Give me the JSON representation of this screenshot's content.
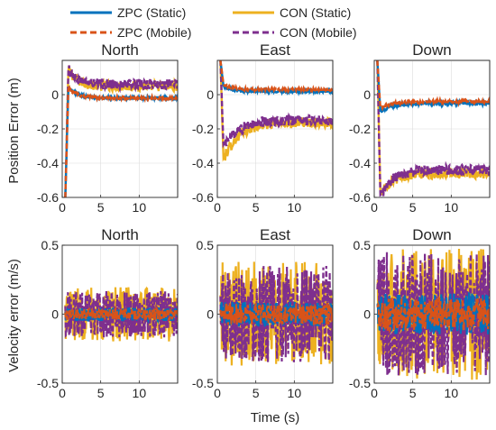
{
  "chart_data": {
    "type": "line",
    "xlabel": "Time (s)",
    "legend": {
      "placement": "top",
      "entries": [
        {
          "name": "ZPC (Static)",
          "color": "#0072BD",
          "dash": "solid"
        },
        {
          "name": "CON (Static)",
          "color": "#EDB120",
          "dash": "solid"
        },
        {
          "name": "ZPC (Mobile)",
          "color": "#D95319",
          "dash": "dashed"
        },
        {
          "name": "CON (Mobile)",
          "color": "#7E2F8E",
          "dash": "dashed"
        }
      ]
    },
    "rows": [
      {
        "ylabel": "Position Error (m)"
      },
      {
        "ylabel": "Velocity error (m/s)"
      }
    ],
    "panels": [
      {
        "title": "North",
        "row": 0,
        "col": 0,
        "xlim": [
          0,
          15
        ],
        "ylim": [
          -0.6,
          0.2
        ],
        "xticks": [
          0,
          5,
          10
        ],
        "yticks": [
          0,
          -0.2,
          -0.4,
          -0.6
        ],
        "xticklabels": [
          "0",
          "5",
          "10"
        ],
        "yticklabels": [
          "0",
          "-0.2",
          "-0.4",
          "-0.6"
        ],
        "grid": true,
        "series": [
          {
            "name": "CON (Static)",
            "kind": "decay",
            "start": -0.6,
            "peak": 0.15,
            "final": 0.05,
            "tau": 1.2,
            "noise": 0.03
          },
          {
            "name": "CON (Mobile)",
            "kind": "decay",
            "start": -0.6,
            "peak": 0.15,
            "final": 0.06,
            "tau": 1.2,
            "noise": 0.03
          },
          {
            "name": "ZPC (Static)",
            "kind": "decay",
            "start": -0.6,
            "peak": 0.04,
            "final": -0.02,
            "tau": 1.2,
            "noise": 0.008
          },
          {
            "name": "ZPC (Mobile)",
            "kind": "decay",
            "start": -0.6,
            "peak": 0.04,
            "final": -0.02,
            "tau": 1.2,
            "noise": 0.008
          }
        ]
      },
      {
        "title": "East",
        "row": 0,
        "col": 1,
        "xlim": [
          0,
          15
        ],
        "ylim": [
          -0.6,
          0.2
        ],
        "xticks": [
          0,
          5,
          10
        ],
        "yticks": [
          0,
          -0.2,
          -0.4,
          -0.6
        ],
        "xticklabels": [
          "0",
          "5",
          "10"
        ],
        "yticklabels": [
          "0",
          "-0.2",
          "-0.4",
          "-0.6"
        ],
        "grid": true,
        "series": [
          {
            "name": "CON (Static)",
            "kind": "decay",
            "start": 0.2,
            "peak": -0.38,
            "final": -0.16,
            "tau": 2.0,
            "noise": 0.03
          },
          {
            "name": "CON (Mobile)",
            "kind": "decay",
            "start": 0.2,
            "peak": -0.3,
            "final": -0.15,
            "tau": 2.0,
            "noise": 0.03
          },
          {
            "name": "ZPC (Static)",
            "kind": "decay",
            "start": 0.2,
            "peak": 0.05,
            "final": 0.02,
            "tau": 1.0,
            "noise": 0.008
          },
          {
            "name": "ZPC (Mobile)",
            "kind": "decay",
            "start": 0.2,
            "peak": 0.06,
            "final": 0.03,
            "tau": 1.0,
            "noise": 0.008
          }
        ]
      },
      {
        "title": "Down",
        "row": 0,
        "col": 2,
        "xlim": [
          0,
          15
        ],
        "ylim": [
          -0.6,
          0.2
        ],
        "xticks": [
          0,
          5,
          10
        ],
        "yticks": [
          0,
          -0.2,
          -0.4,
          -0.6
        ],
        "xticklabels": [
          "0",
          "5",
          "10"
        ],
        "yticklabels": [
          "0",
          "-0.2",
          "-0.4",
          "-0.6"
        ],
        "grid": true,
        "series": [
          {
            "name": "CON (Static)",
            "kind": "decay",
            "start": 0.2,
            "peak": -0.58,
            "final": -0.46,
            "tau": 1.5,
            "noise": 0.03
          },
          {
            "name": "CON (Mobile)",
            "kind": "decay",
            "start": 0.2,
            "peak": -0.6,
            "final": -0.44,
            "tau": 1.5,
            "noise": 0.03
          },
          {
            "name": "ZPC (Static)",
            "kind": "decay",
            "start": 0.2,
            "peak": -0.1,
            "final": -0.05,
            "tau": 1.5,
            "noise": 0.01
          },
          {
            "name": "ZPC (Mobile)",
            "kind": "decay",
            "start": 0.2,
            "peak": -0.08,
            "final": -0.04,
            "tau": 1.5,
            "noise": 0.01
          }
        ]
      },
      {
        "title": "North",
        "row": 1,
        "col": 0,
        "xlim": [
          0,
          15
        ],
        "ylim": [
          -0.5,
          0.5
        ],
        "xticks": [
          0,
          5,
          10
        ],
        "yticks": [
          -0.5,
          0,
          0.5
        ],
        "xticklabels": [
          "0",
          "5",
          "10"
        ],
        "yticklabels": [
          "-0.5",
          "0",
          "0.5"
        ],
        "grid": true,
        "series": [
          {
            "name": "CON (Static)",
            "kind": "noise",
            "mean": 0.0,
            "amp": 0.2
          },
          {
            "name": "CON (Mobile)",
            "kind": "noise",
            "mean": 0.0,
            "amp": 0.17
          },
          {
            "name": "ZPC (Static)",
            "kind": "noise",
            "mean": 0.0,
            "amp": 0.05
          },
          {
            "name": "ZPC (Mobile)",
            "kind": "noise",
            "mean": 0.0,
            "amp": 0.04
          }
        ]
      },
      {
        "title": "East",
        "row": 1,
        "col": 1,
        "xlim": [
          0,
          15
        ],
        "ylim": [
          -0.5,
          0.5
        ],
        "xticks": [
          0,
          5,
          10
        ],
        "yticks": [
          -0.5,
          0,
          0.5
        ],
        "xticklabels": [
          "0",
          "5",
          "10"
        ],
        "yticklabels": [
          "-0.5",
          "0",
          "0.5"
        ],
        "grid": true,
        "series": [
          {
            "name": "CON (Static)",
            "kind": "noise",
            "mean": 0.0,
            "amp": 0.38
          },
          {
            "name": "CON (Mobile)",
            "kind": "noise",
            "mean": 0.0,
            "amp": 0.35
          },
          {
            "name": "ZPC (Static)",
            "kind": "noise",
            "mean": 0.0,
            "amp": 0.09
          },
          {
            "name": "ZPC (Mobile)",
            "kind": "noise",
            "mean": 0.0,
            "amp": 0.08
          }
        ]
      },
      {
        "title": "Down",
        "row": 1,
        "col": 2,
        "xlim": [
          0,
          15
        ],
        "ylim": [
          -0.5,
          0.5
        ],
        "xticks": [
          0,
          5,
          10
        ],
        "yticks": [
          -0.5,
          0,
          0.5
        ],
        "xticklabels": [
          "0",
          "5",
          "10"
        ],
        "yticklabels": [
          "-0.5",
          "0",
          "0.5"
        ],
        "grid": true,
        "series": [
          {
            "name": "CON (Static)",
            "kind": "noise",
            "mean": 0.0,
            "amp": 0.48
          },
          {
            "name": "CON (Mobile)",
            "kind": "noise",
            "mean": 0.0,
            "amp": 0.45
          },
          {
            "name": "ZPC (Static)",
            "kind": "noise",
            "mean": 0.0,
            "amp": 0.15
          },
          {
            "name": "ZPC (Mobile)",
            "kind": "noise",
            "mean": 0.0,
            "amp": 0.12
          }
        ]
      }
    ]
  }
}
